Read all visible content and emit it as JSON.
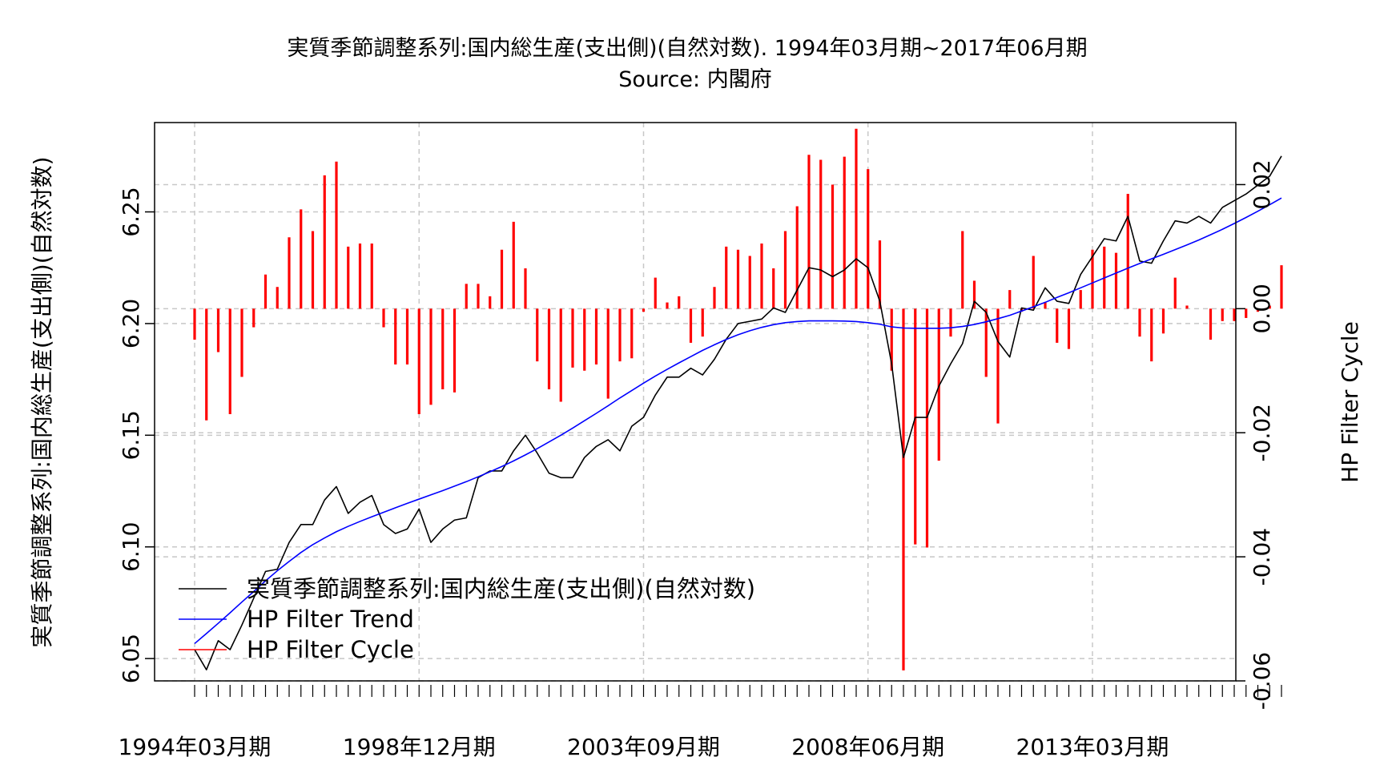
{
  "chart_data": {
    "type": "line",
    "title": "実質季節調整系列:国内総生産(支出側)(自然対数). 1994年03月期~2017年06月期",
    "subtitle": "Source: 内閣府",
    "ylabel": "実質季節調整系列:国内総生産(支出側)(自然対数)",
    "y2label": "HP Filter Cycle",
    "ylim": [
      6.04,
      6.29
    ],
    "y2lim": [
      -0.06,
      0.03
    ],
    "yticks": [
      6.05,
      6.1,
      6.15,
      6.2,
      6.25
    ],
    "ytick_labels": [
      "6.05",
      "6.10",
      "6.15",
      "6.20",
      "6.25"
    ],
    "y2ticks": [
      -0.06,
      -0.04,
      -0.02,
      0.0,
      0.02
    ],
    "y2tick_labels": [
      "-0.06",
      "-0.04",
      "-0.02",
      "0.00",
      "0.02"
    ],
    "x_label_index": [
      0,
      19,
      38,
      57,
      76
    ],
    "x_labels": [
      "1994年03月期",
      "1998年12月期",
      "2003年09月期",
      "2008年06月期",
      "2013年03月期"
    ],
    "grid": true,
    "legend_position": "bottom-left",
    "colors": {
      "gdp": "#000000",
      "trend": "#0000ff",
      "cycle": "#ff0000",
      "grid": "#c8c8c8"
    },
    "series": [
      {
        "name": "実質季節調整系列:国内総生産(支出側)(自然対数)",
        "axis": "left",
        "values": [
          6.054,
          6.045,
          6.058,
          6.054,
          6.065,
          6.077,
          6.089,
          6.09,
          6.102,
          6.11,
          6.11,
          6.121,
          6.127,
          6.115,
          6.12,
          6.123,
          6.11,
          6.106,
          6.108,
          6.117,
          6.102,
          6.108,
          6.112,
          6.113,
          6.131,
          6.134,
          6.134,
          6.143,
          6.15,
          6.142,
          6.133,
          6.131,
          6.131,
          6.14,
          6.145,
          6.148,
          6.143,
          6.154,
          6.158,
          6.168,
          6.176,
          6.176,
          6.18,
          6.177,
          6.184,
          6.193,
          6.2,
          6.201,
          6.202,
          6.207,
          6.205,
          6.215,
          6.225,
          6.224,
          6.221,
          6.224,
          6.229,
          6.225,
          6.21,
          6.182,
          6.14,
          6.158,
          6.158,
          6.172,
          6.182,
          6.191,
          6.21,
          6.205,
          6.192,
          6.185,
          6.207,
          6.206,
          6.216,
          6.21,
          6.209,
          6.222,
          6.23,
          6.238,
          6.237,
          6.248,
          6.228,
          6.227,
          6.237,
          6.246,
          6.245,
          6.248,
          6.245,
          6.252,
          6.255,
          6.258,
          6.262,
          6.266,
          6.275
        ]
      },
      {
        "name": "HP Filter Trend",
        "axis": "left",
        "values": [
          6.0567,
          6.0612,
          6.0658,
          6.0705,
          6.0753,
          6.08,
          6.0848,
          6.0893,
          6.0935,
          6.0975,
          6.101,
          6.104,
          6.1068,
          6.1092,
          6.1114,
          6.1135,
          6.1155,
          6.1175,
          6.1195,
          6.1214,
          6.1233,
          6.1252,
          6.1272,
          6.1292,
          6.1314,
          6.1336,
          6.136,
          6.1385,
          6.1412,
          6.144,
          6.147,
          6.15,
          6.1532,
          6.1565,
          6.1598,
          6.1632,
          6.1667,
          6.17,
          6.1733,
          6.1765,
          6.1795,
          6.1824,
          6.1852,
          6.188,
          6.1905,
          6.1929,
          6.195,
          6.1968,
          6.1983,
          6.1995,
          6.2004,
          6.2009,
          6.2012,
          6.2012,
          6.2012,
          6.2011,
          6.2009,
          6.2004,
          6.1997,
          6.1985,
          6.198,
          6.1979,
          6.1979,
          6.1979,
          6.1981,
          6.1987,
          6.1996,
          6.2008,
          6.2022,
          6.2037,
          6.2056,
          6.2075,
          6.2095,
          6.2117,
          6.2138,
          6.216,
          6.2182,
          6.2204,
          6.2226,
          6.2248,
          6.2269,
          6.229,
          6.231,
          6.2331,
          6.2352,
          6.2374,
          6.2398,
          6.2422,
          6.2448,
          6.2475,
          6.2503,
          6.2532,
          6.2562
        ]
      },
      {
        "name": "HP Filter Cycle",
        "axis": "right",
        "values": [
          -0.005,
          -0.018,
          -0.007,
          -0.017,
          -0.011,
          -0.003,
          0.0055,
          0.0035,
          0.0115,
          0.016,
          0.0125,
          0.0215,
          0.0237,
          0.01,
          0.0105,
          0.0105,
          -0.003,
          -0.009,
          -0.009,
          -0.017,
          -0.0155,
          -0.013,
          -0.0135,
          0.004,
          0.004,
          0.002,
          0.0095,
          0.014,
          0.0065,
          -0.0085,
          -0.013,
          -0.015,
          -0.0095,
          -0.01,
          -0.009,
          -0.0145,
          -0.0085,
          -0.008,
          -0.0005,
          0.005,
          0.001,
          0.002,
          -0.0055,
          -0.0045,
          0.0035,
          0.01,
          0.0095,
          0.0085,
          0.0105,
          0.0065,
          0.0125,
          0.0165,
          0.0248,
          0.024,
          0.02,
          0.0245,
          0.029,
          0.0225,
          0.011,
          -0.01,
          -0.0583,
          -0.038,
          -0.0385,
          -0.0245,
          -0.0045,
          0.0125,
          0.0045,
          -0.011,
          -0.0185,
          0.003,
          -0.0005,
          0.0085,
          0.001,
          -0.0055,
          -0.0065,
          0.003,
          0.0095,
          0.01,
          0.009,
          0.0185,
          -0.0045,
          -0.0085,
          -0.004,
          0.005,
          0.0005,
          0.0,
          -0.005,
          -0.002,
          -0.002,
          -0.0015,
          -0.0005,
          0.0005,
          0.007
        ]
      }
    ]
  }
}
